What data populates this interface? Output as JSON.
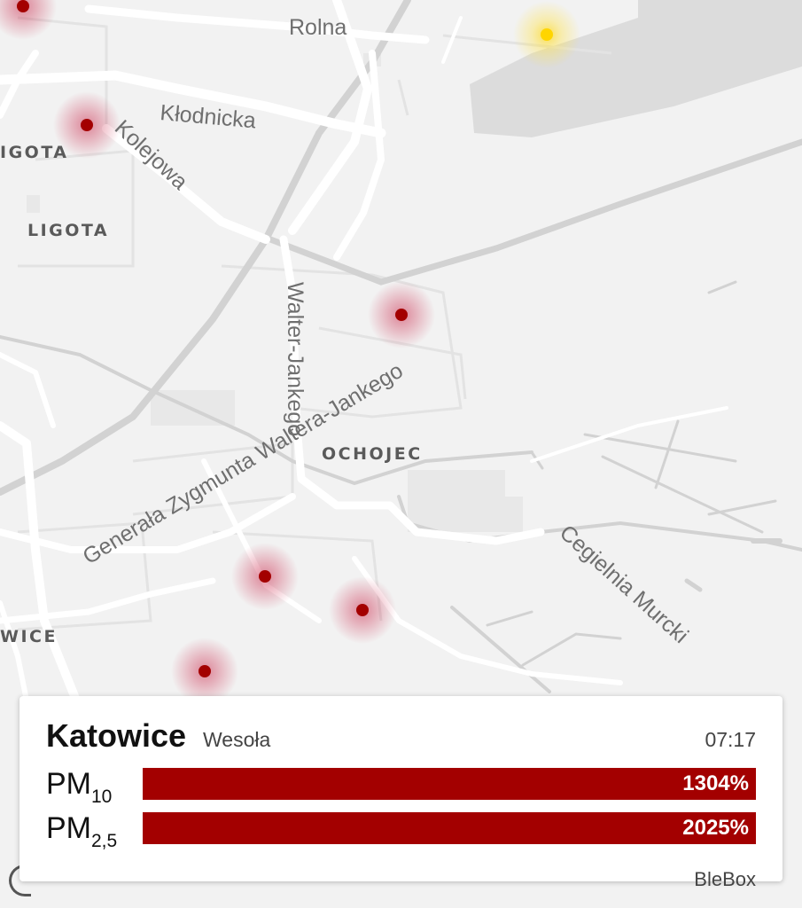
{
  "map": {
    "street_labels": [
      "Rolna",
      "Kłodnicka",
      "Kolejowa",
      "Walter-Jankego",
      "Generała Zygmunta Waltera-Jankego",
      "Cegielnia Murcki"
    ],
    "district_labels": [
      "IGOTA",
      "LIGOTA",
      "OCHOJEC",
      "WICE"
    ],
    "colors": {
      "background": "#f2f2f2",
      "road": "#ffffff",
      "railway": "#cfcfcf",
      "water_area": "#dcdcdc",
      "marker_red": "#a30000",
      "marker_yellow": "#ffd500"
    },
    "sensor_markers": [
      "red",
      "yellow",
      "red",
      "red",
      "red",
      "red",
      "red"
    ]
  },
  "card": {
    "city": "Katowice",
    "district": "Wesoła",
    "time": "07:17",
    "pm10": {
      "label": "PM",
      "subscript": "10",
      "value_label": "1304%",
      "fill_fraction": 1.0
    },
    "pm25": {
      "label": "PM",
      "subscript": "2,5",
      "value_label": "2025%",
      "fill_fraction": 1.0
    },
    "bar_color": "#a30000",
    "source": "BleBox"
  }
}
